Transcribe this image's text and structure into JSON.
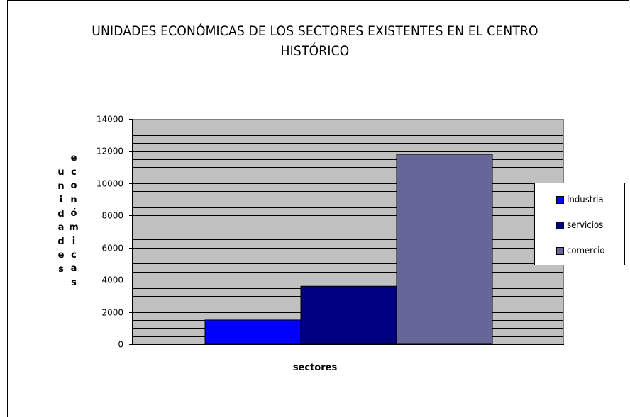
{
  "chart_data": {
    "type": "bar",
    "title_lines": [
      "UNIDADES ECONÓMICAS DE LOS SECTORES EXISTENTES EN EL CENTRO",
      "HISTÓRICO"
    ],
    "xlabel": "sectores",
    "ylabel_columns": [
      "unidades",
      "económicas"
    ],
    "ylim": [
      0,
      14000
    ],
    "ytick_step": 2000,
    "minor_grid_step": 500,
    "grid": true,
    "legend_position": "right",
    "series": [
      {
        "name": "Industria",
        "value": 1500,
        "color": "#0000ff"
      },
      {
        "name": "servicios",
        "value": 3600,
        "color": "#000080"
      },
      {
        "name": "comercio",
        "value": 11800,
        "color": "#666699"
      }
    ],
    "plot_background": "#c0c0c0"
  }
}
